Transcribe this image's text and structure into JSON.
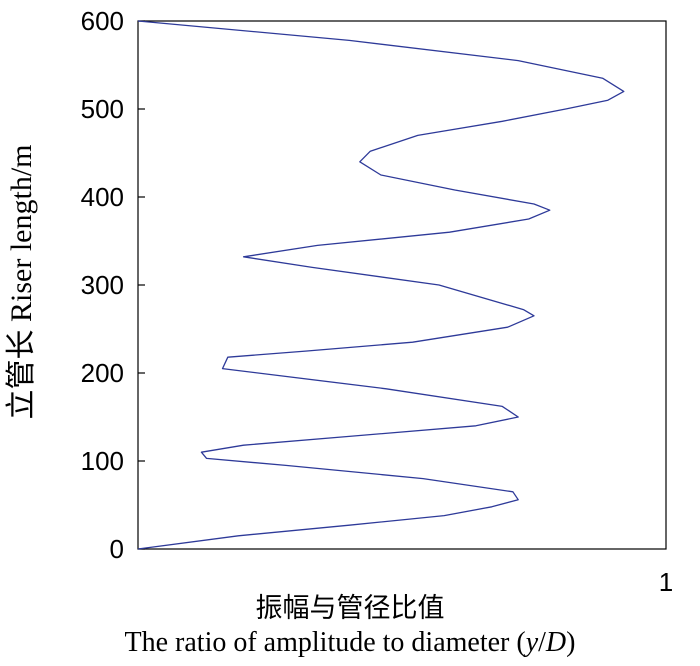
{
  "chart_data": {
    "type": "line",
    "title": "",
    "xlabel_cn": "振幅与管径比值",
    "xlabel_en_prefix": "The ratio of amplitude to diameter (",
    "xlabel_var_y": "y",
    "xlabel_slash": "/",
    "xlabel_var_D": "D",
    "xlabel_en_suffix": ")",
    "ylabel": "立管长 Riser length/m",
    "xlim": [
      0,
      1
    ],
    "ylim": [
      0,
      600
    ],
    "x_ticks": [
      {
        "value": 1,
        "label": "1"
      }
    ],
    "y_ticks": [
      0,
      100,
      200,
      300,
      400,
      500,
      600
    ],
    "grid": false,
    "legend": "none",
    "series": [
      {
        "color": "#2e3a99",
        "x": [
          0.0,
          0.19,
          0.4,
          0.58,
          0.67,
          0.72,
          0.71,
          0.54,
          0.28,
          0.13,
          0.12,
          0.2,
          0.4,
          0.64,
          0.72,
          0.69,
          0.47,
          0.16,
          0.17,
          0.32,
          0.52,
          0.7,
          0.75,
          0.73,
          0.57,
          0.33,
          0.2,
          0.34,
          0.59,
          0.74,
          0.78,
          0.75,
          0.6,
          0.46,
          0.42,
          0.44,
          0.53,
          0.69,
          0.81,
          0.89,
          0.92,
          0.88,
          0.72,
          0.4,
          0.0
        ],
        "y": [
          0,
          15,
          27,
          38,
          48,
          56,
          65,
          80,
          95,
          103,
          110,
          118,
          128,
          140,
          150,
          162,
          182,
          205,
          218,
          225,
          235,
          252,
          265,
          272,
          300,
          320,
          332,
          345,
          360,
          375,
          385,
          392,
          408,
          425,
          440,
          452,
          470,
          486,
          500,
          510,
          520,
          535,
          555,
          578,
          600
        ]
      }
    ]
  }
}
